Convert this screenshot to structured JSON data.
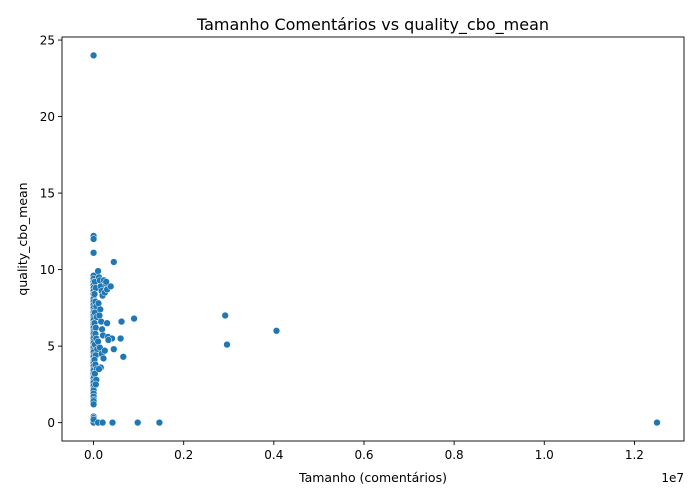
{
  "chart_data": {
    "type": "scatter",
    "title": "Tamanho Comentários vs quality_cbo_mean",
    "xlabel": "Tamanho (comentários)",
    "ylabel": "quality_cbo_mean",
    "x_scale_label": "1e7",
    "x_scale_factor": 10000000,
    "xlim": [
      -700000,
      13100000
    ],
    "ylim": [
      -1.2,
      25.2
    ],
    "x_ticks": [
      0,
      2000000,
      4000000,
      6000000,
      8000000,
      10000000,
      12000000
    ],
    "x_tick_labels": [
      "0.0",
      "0.2",
      "0.4",
      "0.6",
      "0.8",
      "1.0",
      "1.2"
    ],
    "y_ticks": [
      0,
      5,
      10,
      15,
      20,
      25
    ],
    "y_tick_labels": [
      "0",
      "5",
      "10",
      "15",
      "20",
      "25"
    ],
    "grid": false,
    "point_color": "#1f77b4",
    "x": [
      0,
      0,
      0,
      0,
      0,
      0,
      0,
      0,
      0,
      0,
      0,
      0,
      0,
      0,
      0,
      0,
      0,
      0,
      0,
      0,
      0,
      0,
      0,
      0,
      0,
      0,
      0,
      0,
      0,
      0,
      0,
      0,
      0,
      0,
      0,
      0,
      0,
      0,
      0,
      0,
      0,
      0,
      0,
      0,
      0,
      0,
      0,
      0,
      0,
      0,
      0,
      0,
      0,
      0,
      0,
      0,
      0,
      0,
      0,
      0,
      30000,
      50000,
      20000,
      40000,
      60000,
      30000,
      70000,
      20000,
      50000,
      40000,
      60000,
      30000,
      80000,
      50000,
      20000,
      40000,
      70000,
      30000,
      60000,
      50000,
      100000,
      120000,
      140000,
      160000,
      180000,
      200000,
      110000,
      150000,
      130000,
      170000,
      190000,
      210000,
      100000,
      140000,
      180000,
      220000,
      160000,
      120000,
      250000,
      270000,
      230000,
      300000,
      380000,
      280000,
      450000,
      320000,
      250000,
      450000,
      620000,
      600000,
      900000,
      660000,
      300000,
      410000,
      330000,
      2920000,
      2960000,
      4060000,
      980000,
      1460000,
      12500000,
      100000,
      200000,
      420000
    ],
    "y": [
      24.0,
      12.2,
      12.0,
      11.1,
      9.6,
      9.4,
      9.2,
      9.0,
      8.8,
      8.6,
      8.4,
      8.1,
      7.9,
      7.7,
      7.5,
      7.3,
      7.2,
      7.0,
      6.8,
      6.7,
      6.5,
      6.4,
      6.2,
      6.0,
      5.9,
      5.8,
      5.6,
      5.5,
      5.3,
      5.2,
      5.0,
      4.9,
      4.7,
      4.6,
      4.4,
      4.3,
      4.1,
      4.0,
      3.9,
      3.7,
      3.5,
      3.4,
      3.2,
      3.0,
      2.9,
      2.7,
      2.6,
      2.4,
      2.2,
      2.1,
      1.9,
      1.7,
      1.5,
      1.4,
      1.2,
      0.4,
      0.1,
      0.0,
      0.3,
      0.2,
      9.2,
      8.8,
      8.4,
      7.9,
      7.6,
      7.2,
      6.9,
      6.5,
      6.2,
      5.8,
      5.5,
      5.1,
      4.8,
      4.4,
      4.1,
      3.8,
      3.5,
      3.2,
      2.8,
      2.5,
      9.9,
      9.5,
      9.3,
      8.9,
      8.6,
      8.3,
      7.8,
      7.4,
      7.0,
      6.6,
      6.1,
      5.7,
      5.3,
      4.9,
      4.5,
      4.2,
      3.6,
      3.5,
      8.5,
      9.1,
      9.3,
      8.7,
      8.9,
      9.2,
      10.5,
      5.6,
      4.7,
      4.8,
      6.6,
      5.5,
      6.8,
      4.3,
      6.5,
      5.5,
      5.4,
      7.0,
      5.1,
      6.0,
      0.0,
      0.0,
      0.0,
      0.0,
      0.0,
      0.0
    ]
  }
}
